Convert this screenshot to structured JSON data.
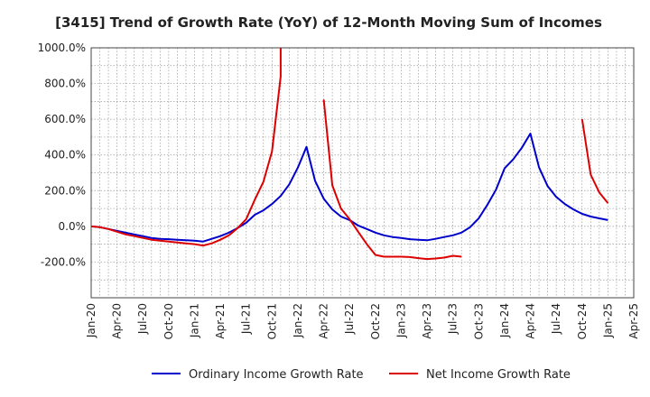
{
  "chart_data": {
    "type": "line",
    "title": "[3415]  Trend of Growth Rate (YoY) of 12-Month Moving Sum of Incomes",
    "xlabel": "",
    "ylabel": "",
    "x_tick_labels": [
      "Jan-20",
      "Apr-20",
      "Jul-20",
      "Oct-20",
      "Jan-21",
      "Apr-21",
      "Jul-21",
      "Oct-21",
      "Jan-22",
      "Apr-22",
      "Jul-22",
      "Oct-22",
      "Jan-23",
      "Apr-23",
      "Jul-23",
      "Oct-23",
      "Jan-24",
      "Apr-24",
      "Jul-24",
      "Oct-24",
      "Jan-25",
      "Apr-25"
    ],
    "y_tick_labels": [
      "1000.0%",
      "800.0%",
      "600.0%",
      "400.0%",
      "200.0%",
      "0.0%",
      "-200.0%"
    ],
    "y_ticks": [
      1000,
      800,
      600,
      400,
      200,
      0,
      -200
    ],
    "ylim": [
      -400,
      1000
    ],
    "xlim": [
      "2020-01",
      "2025-04"
    ],
    "grid": true,
    "legend_position": "bottom",
    "series": [
      {
        "name": "Ordinary Income Growth Rate",
        "color": "#0000cc",
        "points": [
          [
            "2020-01",
            0
          ],
          [
            "2020-02",
            -5
          ],
          [
            "2020-03",
            -15
          ],
          [
            "2020-04",
            -25
          ],
          [
            "2020-05",
            -35
          ],
          [
            "2020-06",
            -45
          ],
          [
            "2020-07",
            -55
          ],
          [
            "2020-08",
            -65
          ],
          [
            "2020-09",
            -70
          ],
          [
            "2020-10",
            -72
          ],
          [
            "2020-11",
            -75
          ],
          [
            "2020-12",
            -78
          ],
          [
            "2021-01",
            -80
          ],
          [
            "2021-02",
            -85
          ],
          [
            "2021-03",
            -70
          ],
          [
            "2021-04",
            -55
          ],
          [
            "2021-05",
            -35
          ],
          [
            "2021-06",
            -10
          ],
          [
            "2021-07",
            20
          ],
          [
            "2021-08",
            65
          ],
          [
            "2021-09",
            90
          ],
          [
            "2021-10",
            125
          ],
          [
            "2021-11",
            170
          ],
          [
            "2021-12",
            235
          ],
          [
            "2022-01",
            330
          ],
          [
            "2022-02",
            445
          ],
          [
            "2022-03",
            255
          ],
          [
            "2022-04",
            155
          ],
          [
            "2022-05",
            95
          ],
          [
            "2022-06",
            55
          ],
          [
            "2022-07",
            35
          ],
          [
            "2022-08",
            5
          ],
          [
            "2022-09",
            -15
          ],
          [
            "2022-10",
            -35
          ],
          [
            "2022-11",
            -50
          ],
          [
            "2022-12",
            -60
          ],
          [
            "2023-01",
            -65
          ],
          [
            "2023-02",
            -72
          ],
          [
            "2023-03",
            -75
          ],
          [
            "2023-04",
            -78
          ],
          [
            "2023-05",
            -70
          ],
          [
            "2023-06",
            -60
          ],
          [
            "2023-07",
            -50
          ],
          [
            "2023-08",
            -35
          ],
          [
            "2023-09",
            -5
          ],
          [
            "2023-10",
            45
          ],
          [
            "2023-11",
            120
          ],
          [
            "2023-12",
            205
          ],
          [
            "2024-01",
            325
          ],
          [
            "2024-02",
            375
          ],
          [
            "2024-03",
            440
          ],
          [
            "2024-04",
            520
          ],
          [
            "2024-05",
            330
          ],
          [
            "2024-06",
            225
          ],
          [
            "2024-07",
            165
          ],
          [
            "2024-08",
            125
          ],
          [
            "2024-09",
            95
          ],
          [
            "2024-10",
            70
          ],
          [
            "2024-11",
            55
          ],
          [
            "2024-12",
            45
          ],
          [
            "2025-01",
            35
          ]
        ]
      },
      {
        "name": "Net Income Growth Rate",
        "color": "#dd0000",
        "segments": [
          [
            [
              "2020-01",
              0
            ],
            [
              "2020-02",
              -5
            ],
            [
              "2020-03",
              -15
            ],
            [
              "2020-04",
              -30
            ],
            [
              "2020-05",
              -45
            ],
            [
              "2020-06",
              -55
            ],
            [
              "2020-07",
              -65
            ],
            [
              "2020-08",
              -75
            ],
            [
              "2020-09",
              -80
            ],
            [
              "2020-10",
              -85
            ],
            [
              "2020-11",
              -90
            ],
            [
              "2020-12",
              -95
            ],
            [
              "2021-01",
              -100
            ],
            [
              "2021-02",
              -108
            ],
            [
              "2021-03",
              -95
            ],
            [
              "2021-04",
              -75
            ],
            [
              "2021-05",
              -50
            ],
            [
              "2021-06",
              -10
            ],
            [
              "2021-07",
              40
            ],
            [
              "2021-08",
              150
            ],
            [
              "2021-09",
              250
            ],
            [
              "2021-10",
              420
            ],
            [
              "2021-11",
              840
            ],
            [
              "2021-11",
              1000
            ]
          ],
          [
            [
              "2022-04",
              710
            ],
            [
              "2022-05",
              230
            ],
            [
              "2022-06",
              100
            ],
            [
              "2022-07",
              40
            ],
            [
              "2022-08",
              -30
            ],
            [
              "2022-09",
              -100
            ],
            [
              "2022-10",
              -160
            ],
            [
              "2022-11",
              -170
            ],
            [
              "2022-12",
              -170
            ],
            [
              "2023-01",
              -170
            ],
            [
              "2023-02",
              -172
            ],
            [
              "2023-03",
              -178
            ],
            [
              "2023-04",
              -183
            ],
            [
              "2023-05",
              -180
            ],
            [
              "2023-06",
              -175
            ],
            [
              "2023-07",
              -165
            ],
            [
              "2023-08",
              -170
            ]
          ],
          [
            [
              "2024-10",
              600
            ],
            [
              "2024-11",
              290
            ],
            [
              "2024-12",
              190
            ],
            [
              "2025-01",
              130
            ]
          ]
        ]
      }
    ]
  }
}
